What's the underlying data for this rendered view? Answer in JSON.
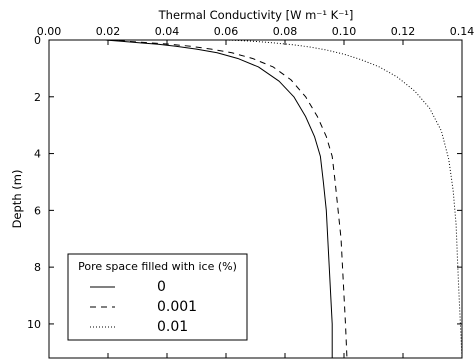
{
  "chart_data": {
    "type": "line",
    "xlabel": "Thermal Conductivity [W m⁻¹ K⁻¹]",
    "ylabel": "Depth (m)",
    "x_axis_position": "top",
    "y_inverted": true,
    "xlim": [
      0.0,
      0.14
    ],
    "ylim": [
      0,
      11.2
    ],
    "x_ticks": [
      "0.00",
      "0.02",
      "0.04",
      "0.06",
      "0.08",
      "0.10",
      "0.12",
      "0.14"
    ],
    "y_ticks": [
      "0",
      "2",
      "4",
      "6",
      "8",
      "10"
    ],
    "grid": false,
    "legend": {
      "title": "Pore space filled with ice (%)",
      "position": "lower-left"
    },
    "series": [
      {
        "name": "0",
        "style": "solid",
        "x": [
          0.019,
          0.025,
          0.031,
          0.037,
          0.043,
          0.05,
          0.057,
          0.064,
          0.071,
          0.078,
          0.083,
          0.087,
          0.09,
          0.092,
          0.093,
          0.094,
          0.0945,
          0.095,
          0.0955,
          0.096,
          0.096
        ],
        "y": [
          0.0,
          0.05,
          0.1,
          0.15,
          0.22,
          0.32,
          0.45,
          0.65,
          0.95,
          1.45,
          2.0,
          2.7,
          3.4,
          4.1,
          5.0,
          6.0,
          7.0,
          8.0,
          9.0,
          10.0,
          11.2
        ]
      },
      {
        "name": "0.001",
        "style": "dashed",
        "x": [
          0.02,
          0.027,
          0.034,
          0.041,
          0.048,
          0.055,
          0.062,
          0.069,
          0.076,
          0.082,
          0.087,
          0.091,
          0.094,
          0.096,
          0.097,
          0.098,
          0.099,
          0.0995,
          0.1,
          0.1005,
          0.101
        ],
        "y": [
          0.0,
          0.05,
          0.1,
          0.15,
          0.22,
          0.32,
          0.45,
          0.65,
          0.95,
          1.4,
          2.0,
          2.7,
          3.4,
          4.1,
          5.0,
          6.0,
          7.0,
          8.0,
          9.0,
          10.0,
          11.2
        ]
      },
      {
        "name": "0.01",
        "style": "dotted",
        "x": [
          0.06,
          0.065,
          0.07,
          0.076,
          0.082,
          0.088,
          0.094,
          0.1,
          0.106,
          0.112,
          0.118,
          0.124,
          0.129,
          0.133,
          0.1355,
          0.137,
          0.138,
          0.1385,
          0.139,
          0.1395,
          0.14
        ],
        "y": [
          0.0,
          0.02,
          0.05,
          0.1,
          0.16,
          0.24,
          0.35,
          0.5,
          0.7,
          0.95,
          1.3,
          1.8,
          2.4,
          3.2,
          4.2,
          5.3,
          6.5,
          7.8,
          9.0,
          10.1,
          11.2
        ]
      }
    ]
  }
}
